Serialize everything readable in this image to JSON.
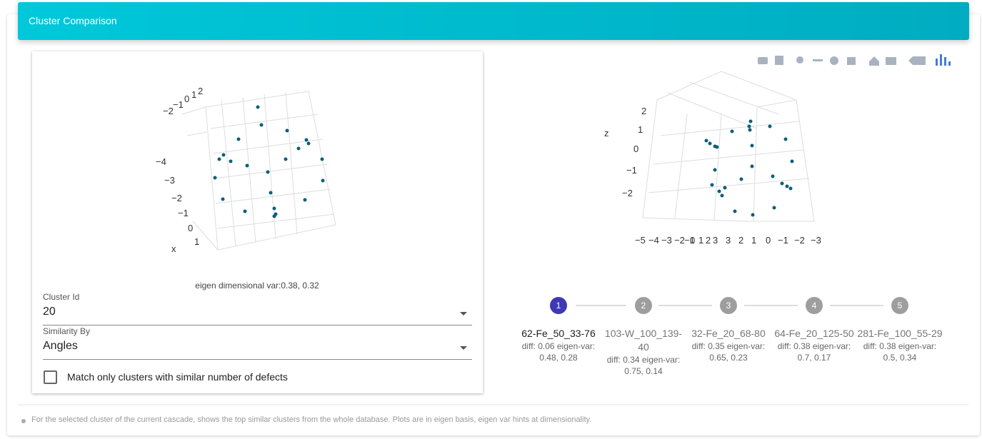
{
  "header": {
    "title": "Cluster Comparison"
  },
  "left_plot": {
    "top_ticks": [
      "−2",
      "−1",
      "0",
      "1",
      "2"
    ],
    "side_ticks": [
      "−4",
      "−3",
      "−2",
      "−1",
      "0",
      "1"
    ],
    "axis_label": "x",
    "caption": "eigen dimensional var:0.38, 0.32"
  },
  "form": {
    "cluster_id": {
      "label": "Cluster Id",
      "value": "20"
    },
    "similarity": {
      "label": "Similarity By",
      "value": "Angles"
    },
    "checkbox": {
      "label": "Match only clusters with similar number of defects"
    }
  },
  "right_plot": {
    "axis_label": "z",
    "z_ticks": [
      "2",
      "1",
      "0",
      "−1",
      "−2"
    ],
    "bottom_ticks": [
      "−5",
      "−4",
      "−3",
      "−2",
      "−1",
      "0",
      "1",
      "2",
      "3",
      "3",
      "2",
      "1",
      "0",
      "−1",
      "−2",
      "−3"
    ]
  },
  "steps": [
    {
      "number": 1,
      "name": "62-Fe_50_33-76",
      "detail": "diff: 0.06 eigen-var: 0.48, 0.28"
    },
    {
      "number": 2,
      "name": "103-W_100_139-40",
      "detail": "diff: 0.34 eigen-var: 0.75, 0.14"
    },
    {
      "number": 3,
      "name": "32-Fe_20_68-80",
      "detail": "diff: 0.35 eigen-var: 0.65, 0.23"
    },
    {
      "number": 4,
      "name": "64-Fe_20_125-50",
      "detail": "diff: 0.38 eigen-var: 0.7, 0.17"
    },
    {
      "number": 5,
      "name": "281-Fe_100_55-29",
      "detail": "diff: 0.38 eigen-var: 0.5, 0.34"
    }
  ],
  "footer": {
    "text": "For the selected cluster of the current cascade, shows the top similar clusters from the whole database. Plots are in eigen basis, eigen var hints at dimensionality."
  }
}
